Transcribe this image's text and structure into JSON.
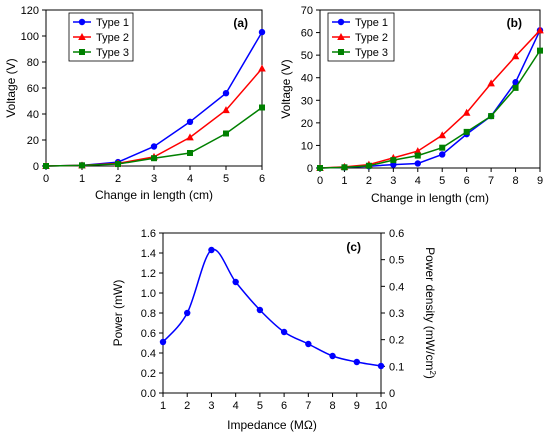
{
  "colors": {
    "type1": "#0000ff",
    "type2": "#ff0000",
    "type3": "#008000",
    "power": "#0000ff"
  },
  "chart_data": [
    {
      "type": "line",
      "panel_label": "(a)",
      "xlabel": "Change in length (cm)",
      "ylabel": "Voltage (V)",
      "xlim": [
        0,
        6
      ],
      "ylim": [
        0,
        120
      ],
      "xticks": [
        0,
        1,
        2,
        3,
        4,
        5,
        6
      ],
      "yticks": [
        0,
        20,
        40,
        60,
        80,
        100,
        120
      ],
      "legend_position": "top-left",
      "x": [
        0,
        1,
        2,
        3,
        4,
        5,
        6
      ],
      "series": [
        {
          "name": "Type 1",
          "values": [
            0,
            0.5,
            3,
            15,
            34,
            56,
            103
          ],
          "marker": "circle",
          "color": "#0000ff"
        },
        {
          "name": "Type 2",
          "values": [
            0,
            0.5,
            2,
            7,
            22,
            43,
            75
          ],
          "marker": "triangle",
          "color": "#ff0000"
        },
        {
          "name": "Type 3",
          "values": [
            0,
            0.5,
            1.5,
            6,
            10,
            25,
            45
          ],
          "marker": "square",
          "color": "#008000"
        }
      ]
    },
    {
      "type": "line",
      "panel_label": "(b)",
      "xlabel": "Change in length (cm)",
      "ylabel": "Voltage (V)",
      "xlim": [
        0,
        9
      ],
      "ylim": [
        0,
        70
      ],
      "xticks": [
        0,
        1,
        2,
        3,
        4,
        5,
        6,
        7,
        8,
        9
      ],
      "yticks": [
        0,
        10,
        20,
        30,
        40,
        50,
        60,
        70
      ],
      "legend_position": "top-left",
      "x": [
        0,
        1,
        2,
        3,
        4,
        5,
        6,
        7,
        8,
        9
      ],
      "series": [
        {
          "name": "Type 1",
          "values": [
            0,
            0.3,
            0.8,
            1.5,
            2,
            6,
            15,
            23,
            38,
            61
          ],
          "marker": "circle",
          "color": "#0000ff"
        },
        {
          "name": "Type 2",
          "values": [
            0,
            0.5,
            1.5,
            4.5,
            7.5,
            14.5,
            24.5,
            37.5,
            49.5,
            61
          ],
          "marker": "triangle",
          "color": "#ff0000"
        },
        {
          "name": "Type 3",
          "values": [
            0,
            0.3,
            1,
            3.5,
            5.5,
            9,
            16,
            23,
            35.5,
            52
          ],
          "marker": "square",
          "color": "#008000"
        }
      ]
    },
    {
      "type": "line",
      "panel_label": "(c)",
      "xlabel": "Impedance (MΩ)",
      "ylabel": "Power (mW)",
      "y2label_main": "Power density (mW/cm",
      "y2label_sup": "2",
      "y2label_end": ")",
      "xlim": [
        1,
        10
      ],
      "ylim": [
        0,
        1.6
      ],
      "y2lim": [
        0,
        0.6
      ],
      "xticks": [
        1,
        2,
        3,
        4,
        5,
        6,
        7,
        8,
        9,
        10
      ],
      "yticks": [
        "0.0",
        "0.2",
        "0.4",
        "0.6",
        "0.8",
        "1.0",
        "1.2",
        "1.4",
        "1.6"
      ],
      "y2ticks": [
        "0",
        "0.1",
        "0.2",
        "0.3",
        "0.4",
        "0.5",
        "0.6"
      ],
      "x": [
        1,
        2,
        3,
        4,
        5,
        6,
        7,
        8,
        9,
        10
      ],
      "series": [
        {
          "values": [
            0.51,
            0.8,
            1.43,
            1.11,
            0.83,
            0.61,
            0.49,
            0.37,
            0.31,
            0.27
          ],
          "marker": "circle",
          "color": "#0000ff"
        }
      ]
    }
  ]
}
